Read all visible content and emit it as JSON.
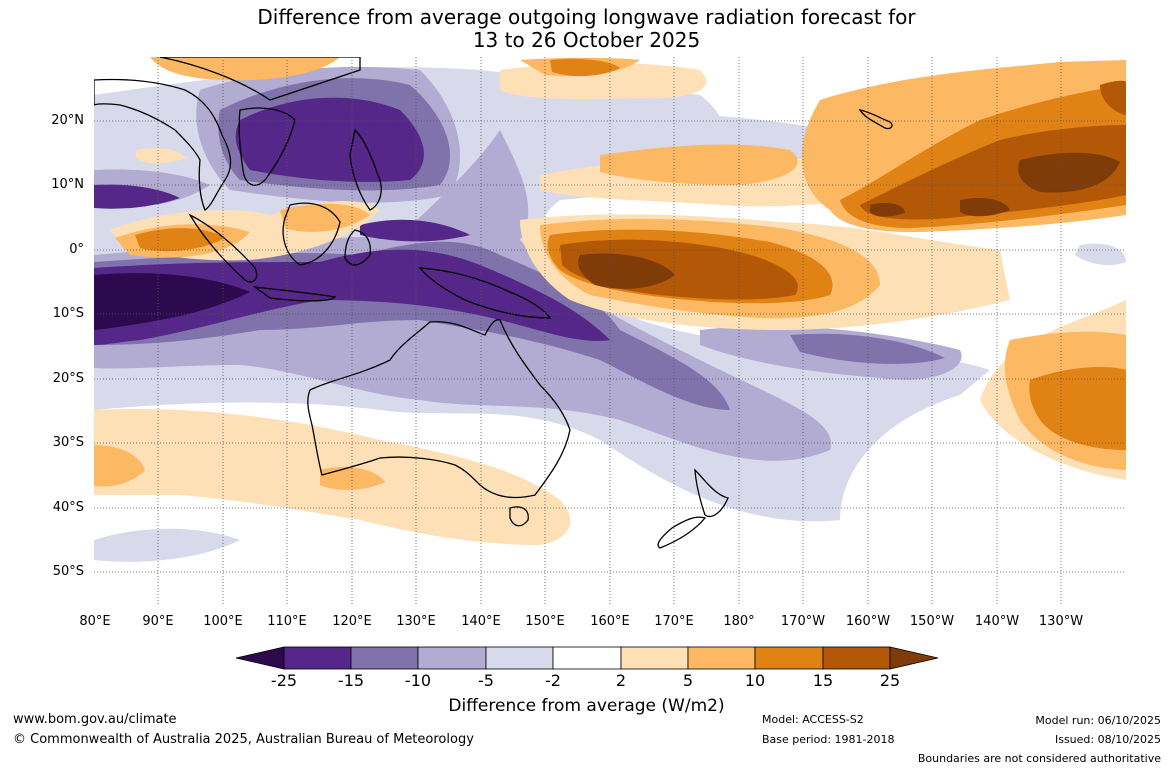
{
  "title": {
    "line1": "Difference from average outgoing longwave radiation forecast for",
    "line2": "13 to 26 October 2025"
  },
  "map": {
    "lat_labels": [
      "20°N",
      "10°N",
      "0°",
      "10°S",
      "20°S",
      "30°S",
      "40°S",
      "50°S"
    ],
    "lon_labels": [
      "80°E",
      "90°E",
      "100°E",
      "110°E",
      "120°E",
      "130°E",
      "140°E",
      "150°E",
      "160°E",
      "170°E",
      "180°",
      "170°W",
      "160°W",
      "150°W",
      "140°W",
      "130°W"
    ]
  },
  "legend": {
    "title": "Difference from average (W/m2)",
    "ticks": [
      "-25",
      "-15",
      "-10",
      "-5",
      "-2",
      "2",
      "5",
      "10",
      "15",
      "25"
    ],
    "colors": [
      "#2d0a4e",
      "#542788",
      "#8073ac",
      "#b2abd2",
      "#d8daeb",
      "#ffffff",
      "#fee0b6",
      "#fdb863",
      "#e08214",
      "#b35806",
      "#7f3b08"
    ]
  },
  "footer": {
    "website": "www.bom.gov.au/climate",
    "copyright": "© Commonwealth of Australia 2025, Australian Bureau of Meteorology",
    "model": "Model: ACCESS-S2",
    "base_period": "Base period: 1981-2018",
    "model_run": "Model run: 06/10/2025",
    "issued": "Issued: 08/10/2025",
    "boundaries_note": "Boundaries are not considered authoritative"
  }
}
